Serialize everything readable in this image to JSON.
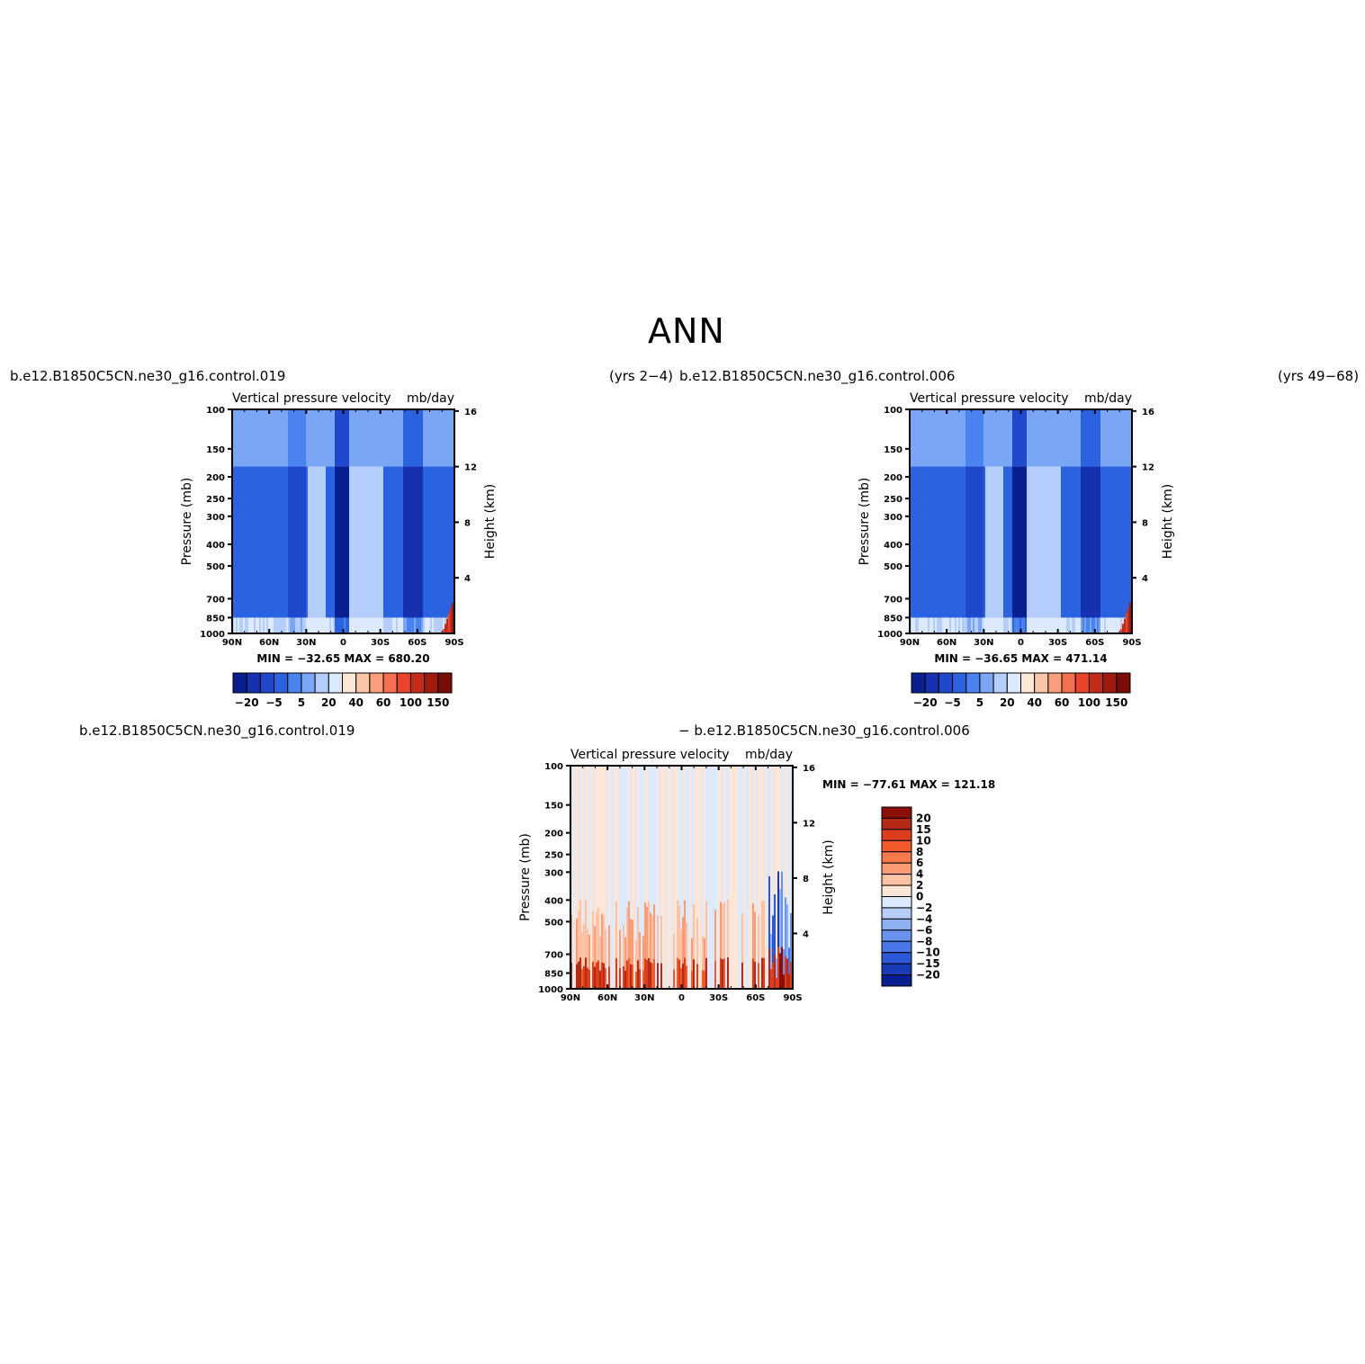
{
  "title": "ANN",
  "top_left_case": "b.e12.B1850C5CN.ne30_g16.control.019",
  "top_left_years": "(yrs 2−4)",
  "top_right_case": "b.e12.B1850C5CN.ne30_g16.control.006",
  "top_right_years": "(yrs 49−68)",
  "bottom_case_a": "b.e12.B1850C5CN.ne30_g16.control.019",
  "bottom_case_b": "− b.e12.B1850C5CN.ne30_g16.control.006",
  "chart_data": [
    {
      "type": "heatmap",
      "title": "Vertical pressure velocity",
      "units": "mb/day",
      "ylabel": "Pressure (mb)",
      "y2label": "Height (km)",
      "x_ticks": [
        "90N",
        "60N",
        "30N",
        "0",
        "30S",
        "60S",
        "90S"
      ],
      "y_ticks": [
        100,
        150,
        200,
        250,
        300,
        400,
        500,
        700,
        850,
        1000
      ],
      "y2_ticks": [
        16,
        12,
        8,
        4
      ],
      "stats": "MIN = −32.65   MAX = 680.20",
      "min": -32.65,
      "max": 680.2,
      "colorbar_labels": [
        "−20",
        "−5",
        "5",
        "20",
        "40",
        "60",
        "100",
        "150"
      ],
      "colorbar_colors": [
        "#0a1f8f",
        "#1531b0",
        "#1f48cc",
        "#2b62e0",
        "#4a82ef",
        "#7aa6f5",
        "#b4cdfa",
        "#ddeafd",
        "#fde8d8",
        "#fbc5a8",
        "#f99e7c",
        "#f56f4e",
        "#e8452a",
        "#c52b19",
        "#9e1b0e",
        "#7a0c06"
      ]
    },
    {
      "type": "heatmap",
      "title": "Vertical pressure velocity",
      "units": "mb/day",
      "ylabel": "Pressure (mb)",
      "y2label": "Height (km)",
      "x_ticks": [
        "90N",
        "60N",
        "30N",
        "0",
        "30S",
        "60S",
        "90S"
      ],
      "y_ticks": [
        100,
        150,
        200,
        250,
        300,
        400,
        500,
        700,
        850,
        1000
      ],
      "y2_ticks": [
        16,
        12,
        8,
        4
      ],
      "stats": "MIN = −36.65   MAX = 471.14",
      "min": -36.65,
      "max": 471.14,
      "colorbar_labels": [
        "−20",
        "−5",
        "5",
        "20",
        "40",
        "60",
        "100",
        "150"
      ],
      "colorbar_colors": [
        "#0a1f8f",
        "#1531b0",
        "#1f48cc",
        "#2b62e0",
        "#4a82ef",
        "#7aa6f5",
        "#b4cdfa",
        "#ddeafd",
        "#fde8d8",
        "#fbc5a8",
        "#f99e7c",
        "#f56f4e",
        "#e8452a",
        "#c52b19",
        "#9e1b0e",
        "#7a0c06"
      ]
    },
    {
      "type": "heatmap",
      "title": "Vertical pressure velocity",
      "units": "mb/day",
      "ylabel": "Pressure (mb)",
      "y2label": "Height (km)",
      "x_ticks": [
        "90N",
        "60N",
        "30N",
        "0",
        "30S",
        "60S",
        "90S"
      ],
      "y_ticks": [
        100,
        150,
        200,
        250,
        300,
        400,
        500,
        700,
        850,
        1000
      ],
      "y2_ticks": [
        16,
        12,
        8,
        4
      ],
      "stats": "MIN = −77.61   MAX = 121.18",
      "min": -77.61,
      "max": 121.18,
      "colorbar_labels": [
        "20",
        "15",
        "10",
        "8",
        "6",
        "4",
        "2",
        "0",
        "−2",
        "−4",
        "−6",
        "−8",
        "−10",
        "−15",
        "−20"
      ],
      "colorbar_colors": [
        "#8a0f0a",
        "#b52a14",
        "#dc3d1d",
        "#f25a2c",
        "#f9794a",
        "#fb9c74",
        "#fcc2a6",
        "#fde6d6",
        "#dde9fc",
        "#b6cdf7",
        "#8eb1f2",
        "#6a93ee",
        "#4a76e8",
        "#2b57d9",
        "#183cb8",
        "#0a1f8f"
      ]
    }
  ]
}
